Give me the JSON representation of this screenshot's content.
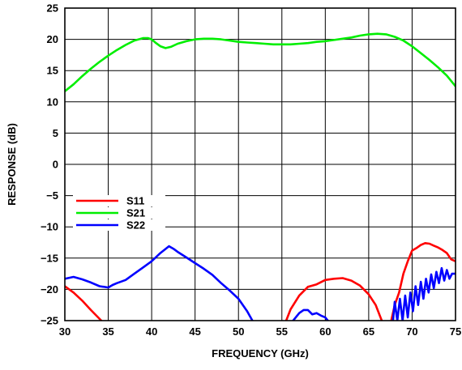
{
  "chart_data": {
    "type": "line",
    "title": "",
    "xlabel": "FREQUENCY (GHz)",
    "ylabel": "RESPONSE (dB)",
    "xlim": [
      30,
      75
    ],
    "ylim": [
      -25,
      25
    ],
    "x_ticks": [
      "30",
      "35",
      "40",
      "45",
      "50",
      "55",
      "60",
      "65",
      "70",
      "75"
    ],
    "y_ticks": [
      "25",
      "20",
      "15",
      "10",
      "5",
      "0",
      "−5",
      "−10",
      "−15",
      "−20",
      "−25"
    ],
    "grid": true,
    "legend_position": "lower-left",
    "series": [
      {
        "name": "S11",
        "color": "#ff0000",
        "segments": [
          [
            [
              30,
              -19.5
            ],
            [
              31,
              -20.5
            ],
            [
              32,
              -21.8
            ],
            [
              33,
              -23.3
            ],
            [
              34.2,
              -25
            ]
          ],
          [
            [
              55.5,
              -25
            ],
            [
              56,
              -23.2
            ],
            [
              57,
              -21
            ],
            [
              58,
              -19.6
            ],
            [
              59,
              -19.2
            ],
            [
              60,
              -18.5
            ],
            [
              61,
              -18.3
            ],
            [
              62,
              -18.2
            ],
            [
              63,
              -18.6
            ],
            [
              64,
              -19.4
            ],
            [
              65,
              -20.8
            ],
            [
              65.8,
              -22.5
            ],
            [
              66.5,
              -25
            ]
          ],
          [
            [
              67.6,
              -25
            ],
            [
              68,
              -22.5
            ],
            [
              68.5,
              -20.5
            ],
            [
              69,
              -17.5
            ],
            [
              69.5,
              -15.5
            ],
            [
              70,
              -13.8
            ],
            [
              70.5,
              -13.4
            ],
            [
              71,
              -12.9
            ],
            [
              71.5,
              -12.6
            ],
            [
              72,
              -12.7
            ],
            [
              72.5,
              -13
            ],
            [
              73,
              -13.3
            ],
            [
              73.5,
              -13.7
            ],
            [
              74,
              -14.2
            ],
            [
              74.5,
              -15.2
            ],
            [
              75,
              -15.5
            ]
          ]
        ]
      },
      {
        "name": "S21",
        "color": "#00ee00",
        "segments": [
          [
            [
              30,
              11.7
            ],
            [
              31,
              12.8
            ],
            [
              32,
              14.1
            ],
            [
              33,
              15.3
            ],
            [
              34,
              16.4
            ],
            [
              35,
              17.4
            ],
            [
              36,
              18.3
            ],
            [
              37,
              19.1
            ],
            [
              38,
              19.8
            ],
            [
              39,
              20.2
            ],
            [
              39.6,
              20.2
            ],
            [
              40,
              20.0
            ],
            [
              40.5,
              19.4
            ],
            [
              41,
              18.9
            ],
            [
              41.6,
              18.6
            ],
            [
              42.2,
              18.8
            ],
            [
              43,
              19.3
            ],
            [
              44,
              19.7
            ],
            [
              45,
              20.0
            ],
            [
              46,
              20.1
            ],
            [
              47,
              20.1
            ],
            [
              48,
              20.0
            ],
            [
              49,
              19.8
            ],
            [
              50,
              19.6
            ],
            [
              51,
              19.5
            ],
            [
              52,
              19.4
            ],
            [
              53,
              19.3
            ],
            [
              54,
              19.2
            ],
            [
              55,
              19.2
            ],
            [
              56,
              19.2
            ],
            [
              57,
              19.3
            ],
            [
              58,
              19.4
            ],
            [
              59,
              19.6
            ],
            [
              60,
              19.7
            ],
            [
              61,
              19.9
            ],
            [
              62,
              20.1
            ],
            [
              63,
              20.3
            ],
            [
              64,
              20.6
            ],
            [
              65,
              20.8
            ],
            [
              66,
              20.9
            ],
            [
              67,
              20.8
            ],
            [
              68,
              20.4
            ],
            [
              69,
              19.8
            ],
            [
              70,
              18.9
            ],
            [
              71,
              17.8
            ],
            [
              72,
              16.7
            ],
            [
              73,
              15.5
            ],
            [
              74,
              14.2
            ],
            [
              75,
              12.5
            ]
          ]
        ]
      },
      {
        "name": "S22",
        "color": "#0000ff",
        "segments": [
          [
            [
              30,
              -18.3
            ],
            [
              31,
              -18.0
            ],
            [
              32,
              -18.4
            ],
            [
              33,
              -18.9
            ],
            [
              34,
              -19.5
            ],
            [
              35,
              -19.7
            ],
            [
              35.5,
              -19.3
            ],
            [
              36,
              -19.0
            ],
            [
              37,
              -18.5
            ],
            [
              38,
              -17.5
            ],
            [
              39,
              -16.5
            ],
            [
              40,
              -15.5
            ],
            [
              41,
              -14.2
            ],
            [
              42,
              -13.1
            ],
            [
              42.5,
              -13.5
            ],
            [
              43,
              -14.0
            ],
            [
              44,
              -14.9
            ],
            [
              45,
              -15.8
            ],
            [
              46,
              -16.7
            ],
            [
              47,
              -17.7
            ],
            [
              48,
              -19.0
            ],
            [
              49,
              -20.2
            ],
            [
              50,
              -21.5
            ],
            [
              50.5,
              -22.5
            ],
            [
              51,
              -23.5
            ],
            [
              51.6,
              -25
            ]
          ],
          [
            [
              56.3,
              -25
            ],
            [
              57,
              -23.8
            ],
            [
              57.5,
              -23.3
            ],
            [
              58,
              -23.3
            ],
            [
              58.5,
              -24.0
            ],
            [
              59,
              -23.8
            ],
            [
              59.5,
              -24.2
            ],
            [
              60,
              -24.5
            ],
            [
              60.3,
              -25
            ]
          ],
          [
            [
              67.8,
              -25
            ],
            [
              68,
              -22
            ],
            [
              68.3,
              -25
            ],
            [
              68.6,
              -21.5
            ],
            [
              68.9,
              -25
            ],
            [
              69.2,
              -21
            ],
            [
              69.5,
              -24.5
            ],
            [
              69.8,
              -20.5
            ],
            [
              70.1,
              -23.5
            ],
            [
              70.4,
              -19.5
            ],
            [
              70.7,
              -22.5
            ],
            [
              71,
              -18.8
            ],
            [
              71.3,
              -21.5
            ],
            [
              71.6,
              -18.3
            ],
            [
              71.9,
              -20.5
            ],
            [
              72.2,
              -17.6
            ],
            [
              72.5,
              -19.8
            ],
            [
              72.8,
              -17.2
            ],
            [
              73.1,
              -19
            ],
            [
              73.4,
              -16.6
            ],
            [
              73.7,
              -18.6
            ],
            [
              74,
              -16.9
            ],
            [
              74.3,
              -18.3
            ],
            [
              74.6,
              -17.5
            ],
            [
              75,
              -17.5
            ]
          ]
        ]
      }
    ]
  }
}
